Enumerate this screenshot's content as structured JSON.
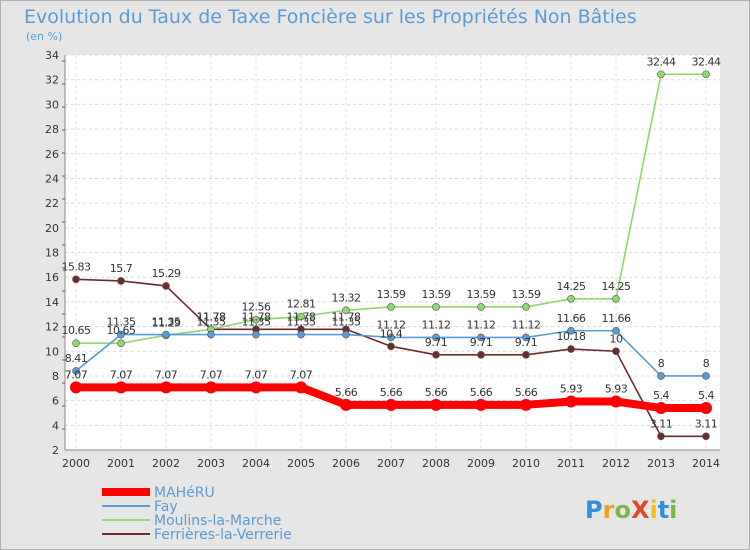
{
  "chart_data": {
    "type": "line",
    "title": "Evolution du Taux de Taxe Foncière sur les Propriétés Non Bâties",
    "subtitle": "(en %)",
    "x": [
      "2000",
      "2001",
      "2002",
      "2003",
      "2004",
      "2005",
      "2006",
      "2007",
      "2008",
      "2009",
      "2010",
      "2011",
      "2012",
      "2013",
      "2014"
    ],
    "ylim": [
      2,
      34
    ],
    "yticks": [
      "2",
      "4",
      "6",
      "8",
      "10",
      "12",
      "14",
      "16",
      "18",
      "20",
      "22",
      "24",
      "26",
      "28",
      "30",
      "32",
      "34"
    ],
    "series": [
      {
        "name": "MAHéRU",
        "color": "#ff0000",
        "values": [
          7.07,
          7.07,
          7.07,
          7.07,
          7.07,
          7.07,
          5.66,
          5.66,
          5.66,
          5.66,
          5.66,
          5.93,
          5.93,
          5.4,
          5.4
        ],
        "labels": [
          "7.07",
          "7.07",
          "7.07",
          "7.07",
          "7.07",
          "7.07",
          "5.66",
          "5.66",
          "5.66",
          "5.66",
          "5.66",
          "5.93",
          "5.93",
          "5.4",
          "5.4"
        ]
      },
      {
        "name": "Fay",
        "color": "#5b9bd5",
        "values": [
          8.41,
          11.35,
          11.35,
          11.35,
          11.35,
          11.35,
          11.35,
          11.12,
          11.12,
          11.12,
          11.12,
          11.66,
          11.66,
          8,
          8
        ],
        "labels": [
          "8.41",
          "11.35",
          "11.35",
          "11.35",
          "11.35",
          "11.35",
          "11.35",
          "11.12",
          "11.12",
          "11.12",
          "11.12",
          "11.66",
          "11.66",
          "8",
          "8"
        ]
      },
      {
        "name": "Moulins-la-Marche",
        "color": "#8fd86f",
        "values": [
          10.65,
          10.65,
          11.29,
          11.78,
          12.56,
          12.81,
          13.32,
          13.59,
          13.59,
          13.59,
          13.59,
          14.25,
          14.25,
          32.44,
          32.44
        ],
        "labels": [
          "10.65",
          "10.65",
          "11.29",
          "11.78",
          "12.56",
          "12.81",
          "13.32",
          "13.59",
          "13.59",
          "13.59",
          "13.59",
          "14.25",
          "14.25",
          "32.44",
          "32.44"
        ]
      },
      {
        "name": "Ferrières-la-Verrerie",
        "color": "#6b2c2c",
        "values": [
          15.83,
          15.7,
          15.29,
          11.78,
          11.78,
          11.78,
          11.78,
          10.4,
          9.71,
          9.71,
          9.71,
          10.18,
          10,
          3.11,
          3.11
        ],
        "labels": [
          "15.83",
          "15.7",
          "15.29",
          "11.78",
          "11.78",
          "11.78",
          "11.78",
          "10.4",
          "9.71",
          "9.71",
          "9.71",
          "10.18",
          "10",
          "3.11",
          "3.11"
        ]
      }
    ],
    "legend_position": "bottom-left"
  },
  "logo": {
    "text": "ProXiti"
  }
}
